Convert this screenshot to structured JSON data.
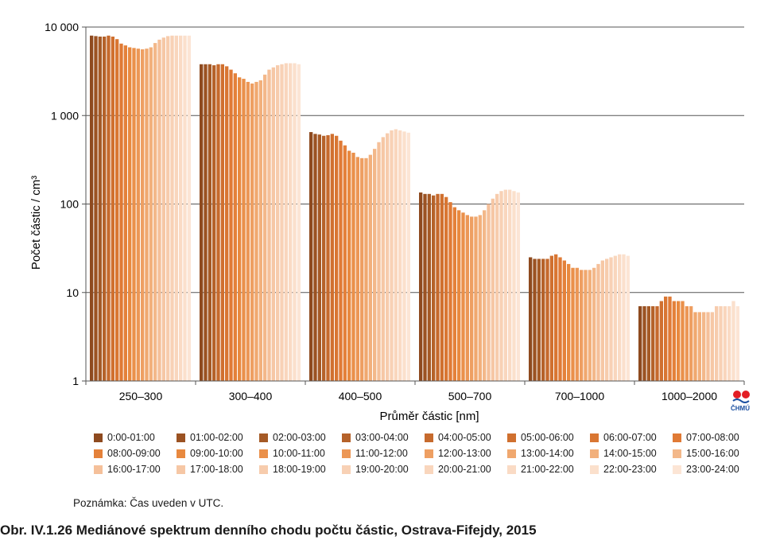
{
  "chart_data": {
    "type": "bar",
    "ylabel": "Počet částic / cm³",
    "xlabel": "Průměr částic [nm]",
    "yscale": "log",
    "ylim": [
      1,
      10000
    ],
    "y_ticks": [
      "1",
      "10",
      "100",
      "1 000",
      "10 000"
    ],
    "grid": "horizontal",
    "legend_position": "bottom",
    "categories": [
      "250–300",
      "300–400",
      "400–500",
      "500–700",
      "700–1000",
      "1000–2000"
    ],
    "hour_colors": [
      "#8e4a1f",
      "#9b5222",
      "#a55a26",
      "#b5622a",
      "#c66a2d",
      "#d0702f",
      "#d97632",
      "#e07a35",
      "#e4813a",
      "#e8893f",
      "#ea904a",
      "#ec9756",
      "#ee9f62",
      "#f0a86f",
      "#f2b07c",
      "#f3b88a",
      "#f5c09a",
      "#f6c7a5",
      "#f7ccad",
      "#f8d1b5",
      "#f9d6bd",
      "#fadbc5",
      "#fbe0cc",
      "#fce5d5"
    ],
    "series": [
      {
        "name": "0:00-01:00",
        "values": [
          8000,
          3800,
          650,
          135,
          25,
          7
        ]
      },
      {
        "name": "01:00-02:00",
        "values": [
          7900,
          3800,
          620,
          130,
          24,
          7
        ]
      },
      {
        "name": "02:00-03:00",
        "values": [
          7800,
          3800,
          610,
          130,
          24,
          7
        ]
      },
      {
        "name": "03:00-04:00",
        "values": [
          7800,
          3700,
          590,
          125,
          24,
          7
        ]
      },
      {
        "name": "04:00-05:00",
        "values": [
          8000,
          3800,
          600,
          130,
          24,
          7
        ]
      },
      {
        "name": "05:00-06:00",
        "values": [
          7800,
          3800,
          620,
          130,
          26,
          8
        ]
      },
      {
        "name": "06:00-07:00",
        "values": [
          7300,
          3600,
          590,
          120,
          27,
          9
        ]
      },
      {
        "name": "07:00-08:00",
        "values": [
          6500,
          3300,
          520,
          105,
          25,
          9
        ]
      },
      {
        "name": "08:00-09:00",
        "values": [
          6200,
          3000,
          460,
          92,
          23,
          8
        ]
      },
      {
        "name": "09:00-10:00",
        "values": [
          5900,
          2700,
          400,
          85,
          21,
          8
        ]
      },
      {
        "name": "10:00-11:00",
        "values": [
          5800,
          2600,
          380,
          80,
          19,
          8
        ]
      },
      {
        "name": "11:00-12:00",
        "values": [
          5700,
          2400,
          340,
          75,
          19,
          7
        ]
      },
      {
        "name": "12:00-13:00",
        "values": [
          5600,
          2300,
          330,
          72,
          18,
          7
        ]
      },
      {
        "name": "13:00-14:00",
        "values": [
          5700,
          2400,
          330,
          72,
          18,
          6
        ]
      },
      {
        "name": "14:00-15:00",
        "values": [
          5900,
          2500,
          360,
          75,
          18,
          6
        ]
      },
      {
        "name": "15:00-16:00",
        "values": [
          6600,
          2900,
          420,
          85,
          19,
          6
        ]
      },
      {
        "name": "16:00-17:00",
        "values": [
          7200,
          3300,
          500,
          100,
          21,
          6
        ]
      },
      {
        "name": "17:00-18:00",
        "values": [
          7600,
          3500,
          570,
          115,
          23,
          6
        ]
      },
      {
        "name": "18:00-19:00",
        "values": [
          7900,
          3700,
          630,
          130,
          24,
          7
        ]
      },
      {
        "name": "19:00-20:00",
        "values": [
          8000,
          3800,
          680,
          140,
          25,
          7
        ]
      },
      {
        "name": "20:00-21:00",
        "values": [
          8000,
          3900,
          700,
          145,
          26,
          7
        ]
      },
      {
        "name": "21:00-22:00",
        "values": [
          8000,
          3900,
          680,
          145,
          27,
          7
        ]
      },
      {
        "name": "22:00-23:00",
        "values": [
          8000,
          3900,
          660,
          140,
          27,
          8
        ]
      },
      {
        "name": "23:00-24:00",
        "values": [
          8000,
          3800,
          640,
          135,
          26,
          7
        ]
      }
    ]
  },
  "note": "Poznámka: Čas uveden v UTC.",
  "caption": "Obr. IV.1.26  Mediánové spektrum denního chodu počtu částic, Ostrava-Fifejdy, 2015",
  "logo_text": "ČHMÚ"
}
